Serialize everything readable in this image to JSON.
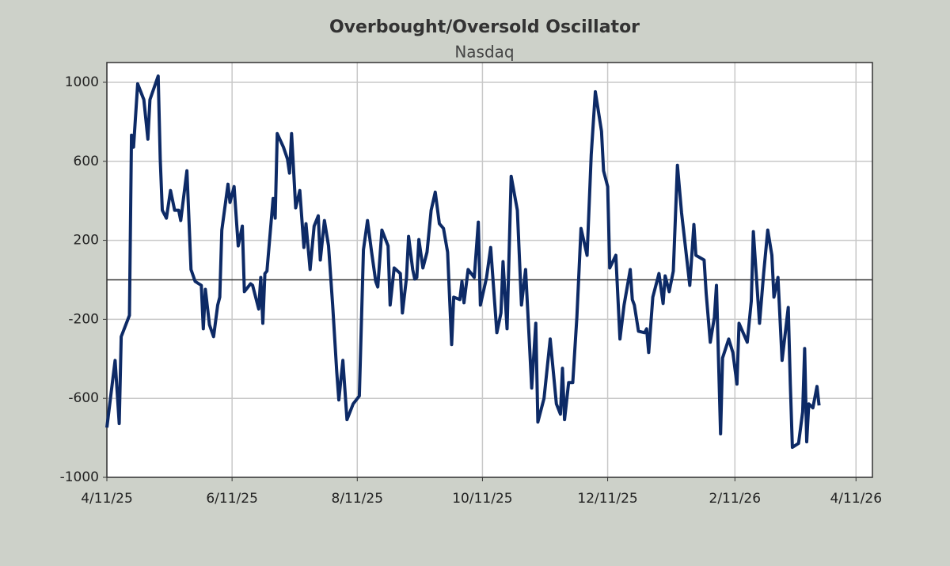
{
  "chart_data": {
    "type": "line",
    "title": "Overbought/Oversold Oscillator",
    "subtitle": "Nasdaq",
    "x": [
      "4/11/25",
      "4/15/25",
      "4/17/25",
      "4/18/25",
      "4/22/25",
      "4/23/25",
      "4/24/25",
      "4/26/25",
      "4/29/25",
      "5/1/25",
      "5/2/25",
      "5/6/25",
      "5/7/25",
      "5/8/25",
      "5/10/25",
      "5/12/25",
      "5/14/25",
      "5/16/25",
      "5/17/25",
      "5/20/25",
      "5/22/25",
      "5/24/25",
      "5/27/25",
      "5/28/25",
      "5/29/25",
      "5/31/25",
      "6/2/25",
      "6/4/25",
      "6/5/25",
      "6/6/25",
      "6/9/25",
      "6/10/25",
      "6/12/25",
      "6/14/25",
      "6/16/25",
      "6/17/25",
      "6/20/25",
      "6/21/25",
      "6/24/25",
      "6/25/25",
      "6/26/25",
      "6/27/25",
      "6/28/25",
      "7/1/25",
      "7/2/25",
      "7/3/25",
      "7/6/25",
      "7/8/25",
      "7/9/25",
      "7/10/25",
      "7/12/25",
      "7/14/25",
      "7/16/25",
      "7/17/25",
      "7/19/25",
      "7/21/25",
      "7/23/25",
      "7/24/25",
      "7/26/25",
      "7/28/25",
      "7/30/25",
      "8/1/25",
      "8/2/25",
      "8/4/25",
      "8/6/25",
      "8/9/25",
      "8/12/25",
      "8/14/25",
      "8/16/25",
      "8/18/25",
      "8/20/25",
      "8/21/25",
      "8/23/25",
      "8/26/25",
      "8/27/25",
      "8/29/25",
      "9/1/25",
      "9/2/25",
      "9/4/25",
      "9/5/25",
      "9/7/25",
      "9/8/25",
      "9/9/25",
      "9/10/25",
      "9/12/25",
      "9/14/25",
      "9/16/25",
      "9/18/25",
      "9/20/25",
      "9/22/25",
      "9/24/25",
      "9/26/25",
      "9/27/25",
      "9/30/25",
      "10/1/25",
      "10/2/25",
      "10/4/25",
      "10/7/25",
      "10/9/25",
      "10/10/25",
      "10/13/25",
      "10/15/25",
      "10/18/25",
      "10/20/25",
      "10/21/25",
      "10/23/25",
      "10/25/25",
      "10/28/25",
      "10/30/25",
      "11/1/25",
      "11/3/25",
      "11/4/25",
      "11/6/25",
      "11/7/25",
      "11/10/25",
      "11/13/25",
      "11/16/25",
      "11/18/25",
      "11/19/25",
      "11/20/25",
      "11/22/25",
      "11/24/25",
      "11/26/25",
      "11/28/25",
      "12/1/25",
      "12/3/25",
      "12/5/25",
      "12/8/25",
      "12/9/25",
      "12/11/25",
      "12/12/25",
      "12/15/25",
      "12/17/25",
      "12/19/25",
      "12/22/25",
      "12/23/25",
      "12/24/25",
      "12/26/25",
      "12/29/25",
      "12/30/25",
      "12/31/25",
      "1/2/26",
      "1/5/26",
      "1/7/26",
      "1/8/26",
      "1/10/26",
      "1/12/26",
      "1/14/26",
      "1/16/26",
      "1/20/26",
      "1/22/26",
      "1/23/26",
      "1/25/26",
      "1/27/26",
      "1/28/26",
      "1/30/26",
      "2/1/26",
      "2/2/26",
      "2/4/26",
      "2/5/26",
      "2/8/26",
      "2/10/26",
      "2/12/26",
      "2/13/26",
      "2/17/26",
      "2/19/26",
      "2/20/26",
      "2/23/26",
      "2/25/26",
      "2/27/26",
      "3/1/26",
      "3/2/26",
      "3/4/26",
      "3/6/26",
      "3/9/26",
      "3/10/26",
      "3/11/26",
      "3/14/26",
      "3/16/26",
      "3/17/26",
      "3/18/26",
      "3/19/26",
      "3/21/26",
      "3/23/26",
      "3/24/26"
    ],
    "series": [
      {
        "name": "Nasdaq",
        "color": "#0d2a66",
        "values": [
          -748,
          -408,
          -728,
          -288,
          -180,
          732,
          672,
          992,
          912,
          712,
          912,
          1032,
          612,
          352,
          312,
          452,
          352,
          352,
          300,
          552,
          52,
          -8,
          -28,
          -248,
          -48,
          -228,
          -288,
          -128,
          -88,
          252,
          484,
          392,
          472,
          172,
          272,
          -60,
          -20,
          -28,
          -148,
          12,
          -220,
          32,
          44,
          412,
          312,
          740,
          672,
          612,
          540,
          740,
          364,
          452,
          164,
          284,
          52,
          272,
          324,
          100,
          300,
          172,
          -128,
          -468,
          -608,
          -408,
          -708,
          -628,
          -588,
          152,
          300,
          140,
          -8,
          -36,
          252,
          172,
          -128,
          60,
          32,
          -168,
          12,
          220,
          52,
          4,
          12,
          204,
          60,
          140,
          352,
          444,
          284,
          260,
          140,
          -328,
          -88,
          -100,
          -8,
          -116,
          52,
          12,
          292,
          -128,
          12,
          164,
          -268,
          -168,
          92,
          -248,
          524,
          352,
          -128,
          52,
          -348,
          -548,
          -220,
          -720,
          -600,
          -300,
          -628,
          -680,
          -448,
          -708,
          -520,
          -520,
          -188,
          260,
          124,
          632,
          952,
          752,
          552,
          472,
          60,
          124,
          -300,
          -128,
          52,
          -100,
          -128,
          -260,
          -268,
          -248,
          -368,
          -88,
          32,
          -120,
          20,
          -60,
          44,
          580,
          340,
          -28,
          280,
          124,
          112,
          100,
          -68,
          -316,
          -188,
          -28,
          -780,
          -396,
          -300,
          -368,
          -528,
          -220,
          -316,
          -108,
          244,
          -220,
          32,
          252,
          124,
          -88,
          12,
          -408,
          -140,
          -528,
          -848,
          -828,
          -668,
          -348,
          -820,
          -628,
          -648,
          -540,
          -636
        ]
      }
    ],
    "xlim": [
      "4/11/25",
      "4/19/26"
    ],
    "xticks": [
      "4/11/25",
      "6/11/25",
      "8/11/25",
      "10/11/25",
      "12/11/25",
      "2/11/26",
      "4/11/26"
    ],
    "ylim": [
      -1000,
      1100
    ],
    "yticks": [
      -1000,
      -600,
      -200,
      200,
      600,
      1000
    ],
    "grid": true,
    "zero_line": true
  }
}
